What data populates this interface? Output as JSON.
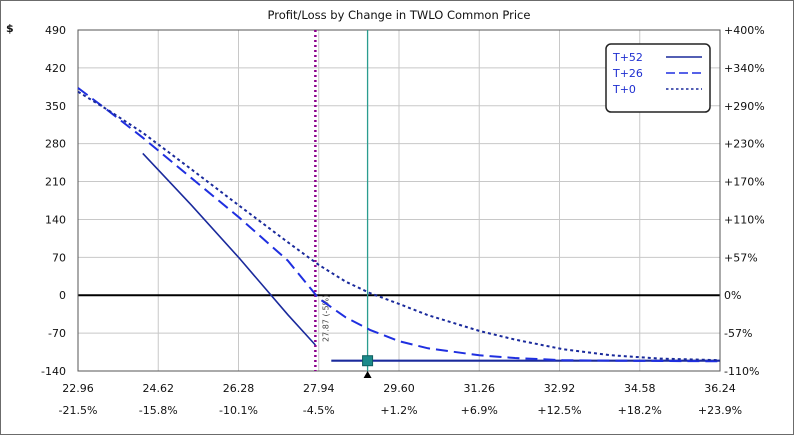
{
  "chart_data": {
    "type": "line",
    "title": "Profit/Loss by Change in TWLO Common Price",
    "ylabel": "$",
    "xlim": [
      22.96,
      36.24
    ],
    "ylim": [
      -140,
      490
    ],
    "x_ticks": [
      22.96,
      24.62,
      26.28,
      27.94,
      29.6,
      31.26,
      32.92,
      34.58,
      36.24
    ],
    "x_tick_labels": [
      "22.96",
      "24.62",
      "26.28",
      "27.94",
      "29.60",
      "31.26",
      "32.92",
      "34.58",
      "36.24"
    ],
    "x_tick_pct_labels": [
      "-21.5%",
      "-15.8%",
      "-10.1%",
      "-4.5%",
      "+1.2%",
      "+6.9%",
      "+12.5%",
      "+18.2%",
      "+23.9%"
    ],
    "y_ticks": [
      490,
      420,
      350,
      280,
      210,
      140,
      70,
      0,
      -70,
      -140
    ],
    "y_tick_labels": [
      "490",
      "420",
      "350",
      "280",
      "210",
      "140",
      "70",
      "0",
      "-70",
      "-140"
    ],
    "y_right_tick_labels": [
      "+400%",
      "+340%",
      "+290%",
      "+230%",
      "+170%",
      "+110%",
      "+57%",
      "0%",
      "-57%",
      "-110%"
    ],
    "grid": true,
    "legend_position": "top-right",
    "series": [
      {
        "name": "T+52",
        "style": "solid",
        "color": "#1a2a9c",
        "points": [
          [
            24.3,
            262
          ],
          [
            25.3,
            167
          ],
          [
            26.3,
            68
          ],
          [
            27.3,
            -36
          ],
          [
            27.87,
            -92
          ]
        ],
        "points2": [
          [
            28.2,
            -121
          ],
          [
            36.24,
            -121
          ]
        ]
      },
      {
        "name": "T+26",
        "style": "dashed",
        "color": "#1f2fe0",
        "points": [
          [
            22.96,
            383
          ],
          [
            23.6,
            340
          ],
          [
            24.3,
            291
          ],
          [
            25.3,
            217
          ],
          [
            26.3,
            143
          ],
          [
            27.3,
            64
          ],
          [
            27.94,
            -6
          ],
          [
            28.5,
            -41
          ],
          [
            29.0,
            -64
          ],
          [
            29.6,
            -85
          ],
          [
            30.2,
            -98
          ],
          [
            31.26,
            -111
          ],
          [
            32.0,
            -116
          ],
          [
            33.0,
            -120
          ],
          [
            34.0,
            -121
          ],
          [
            36.24,
            -122
          ]
        ]
      },
      {
        "name": "T+0",
        "style": "dotted",
        "color": "#1a2a9c",
        "points": [
          [
            22.96,
            376
          ],
          [
            23.6,
            341
          ],
          [
            24.3,
            300
          ],
          [
            25.3,
            233
          ],
          [
            26.3,
            165
          ],
          [
            27.3,
            98
          ],
          [
            27.94,
            56
          ],
          [
            28.5,
            25
          ],
          [
            29.0,
            4
          ],
          [
            29.6,
            -16
          ],
          [
            30.2,
            -37
          ],
          [
            31.26,
            -66
          ],
          [
            32.0,
            -82
          ],
          [
            33.0,
            -100
          ],
          [
            34.0,
            -111
          ],
          [
            35.0,
            -117
          ],
          [
            36.24,
            -120
          ]
        ]
      }
    ],
    "annotations": [
      {
        "type": "vline",
        "x": 27.87,
        "color": "#8b008b",
        "style": "dotted",
        "label": "27.87 (-5%)"
      },
      {
        "type": "vline",
        "x": 28.95,
        "color": "#2a9d8f",
        "style": "solid"
      }
    ]
  }
}
